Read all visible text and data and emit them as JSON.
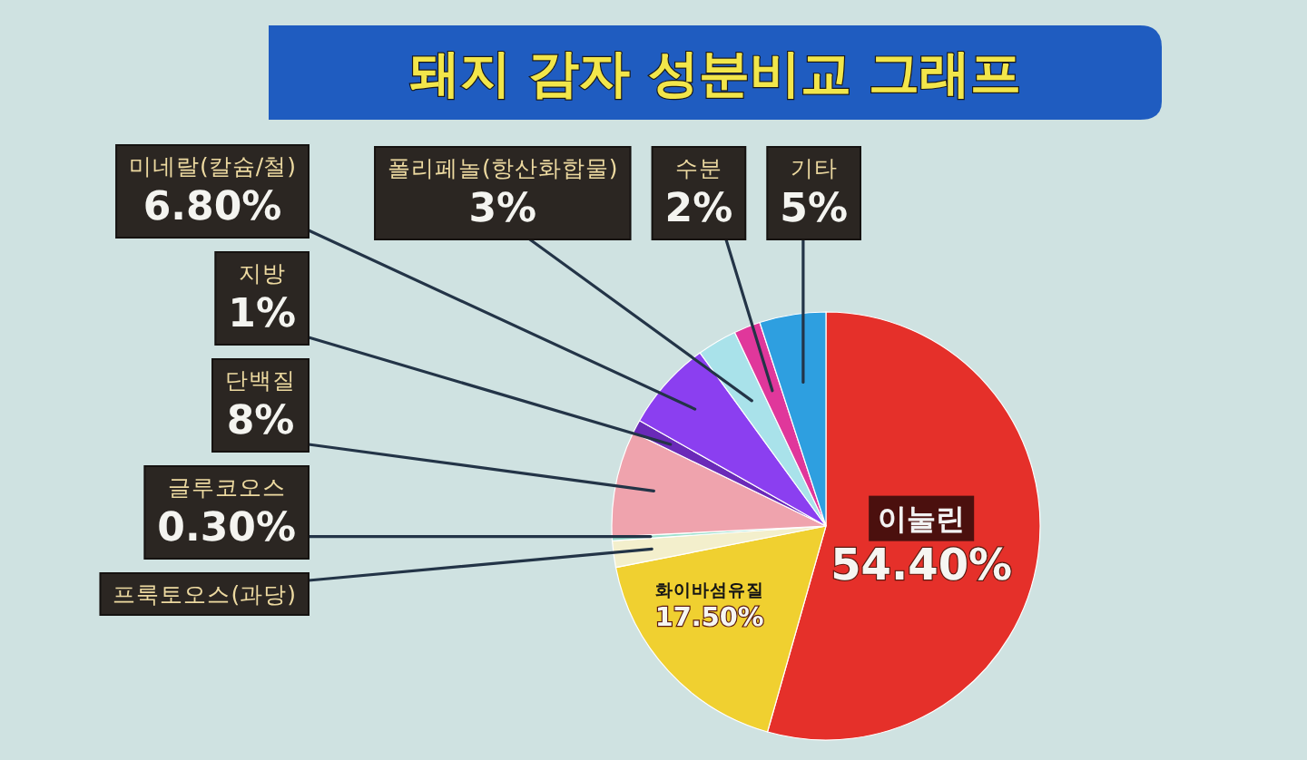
{
  "chart_data": {
    "type": "pie",
    "title": "돼지 감자 성분비교 그래프",
    "categories": [
      "이눌린",
      "화이바섬유질",
      "프룩토오스(과당)",
      "글루코오스",
      "단백질",
      "지방",
      "미네랄(칼슘/철)",
      "폴리페놀(항산화합물)",
      "수분",
      "기타"
    ],
    "values": [
      54.4,
      17.5,
      2,
      0.3,
      8,
      1,
      6.8,
      3,
      2,
      5
    ],
    "colors": [
      "#e5302a",
      "#f0d030",
      "#f3efcc",
      "#9fe0cf",
      "#efa3ad",
      "#6a2ab8",
      "#8b3ff0",
      "#a9e2ea",
      "#e0379b",
      "#2e9fe0"
    ],
    "value_labels": [
      "54.40%",
      "17.50%",
      null,
      "0.30%",
      "8%",
      "1%",
      "6.80%",
      "3%",
      "2%",
      "5%"
    ]
  }
}
